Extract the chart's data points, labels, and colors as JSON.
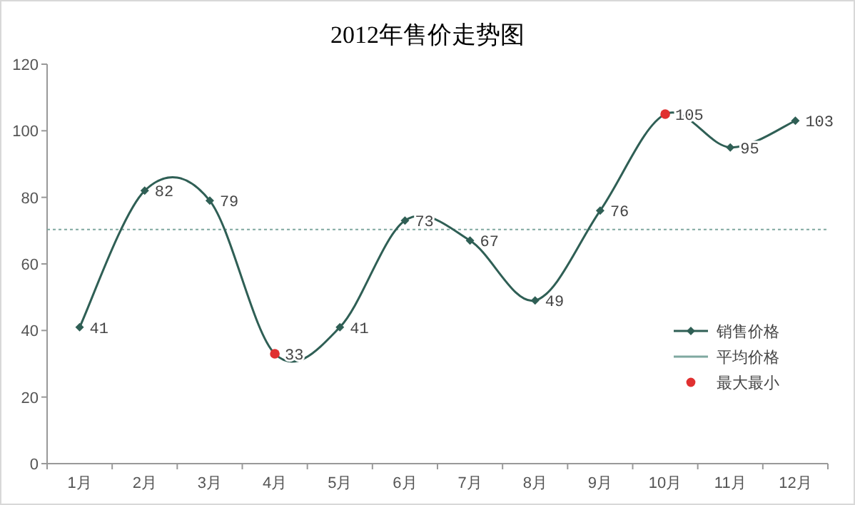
{
  "chart_data": {
    "type": "line",
    "title": "2012年售价走势图",
    "categories": [
      "1月",
      "2月",
      "3月",
      "4月",
      "5月",
      "6月",
      "7月",
      "8月",
      "9月",
      "10月",
      "11月",
      "12月"
    ],
    "series": [
      {
        "name": "销售价格",
        "color": "#2f5f55",
        "marker": "diamond",
        "values": [
          41,
          82,
          79,
          33,
          41,
          73,
          67,
          49,
          76,
          105,
          95,
          103
        ],
        "value_labels": [
          "41",
          "82",
          "79",
          "33",
          "41",
          "73",
          "67",
          "49",
          "76",
          "105",
          "95",
          "103"
        ]
      },
      {
        "name": "最大最小",
        "type": "scatter",
        "color": "#e03030",
        "marker": "circle",
        "x": [
          "4月",
          "10月"
        ],
        "values": [
          33,
          105
        ]
      }
    ],
    "ref_lines": [
      {
        "axis": "y",
        "value": 70.33,
        "label": "平均价格",
        "color": "#7fa8a0",
        "line_style": "dotted"
      }
    ],
    "ylim": [
      0,
      120
    ],
    "yticks": [
      0,
      20,
      40,
      60,
      80,
      100,
      120
    ],
    "legend": "bottom right"
  }
}
